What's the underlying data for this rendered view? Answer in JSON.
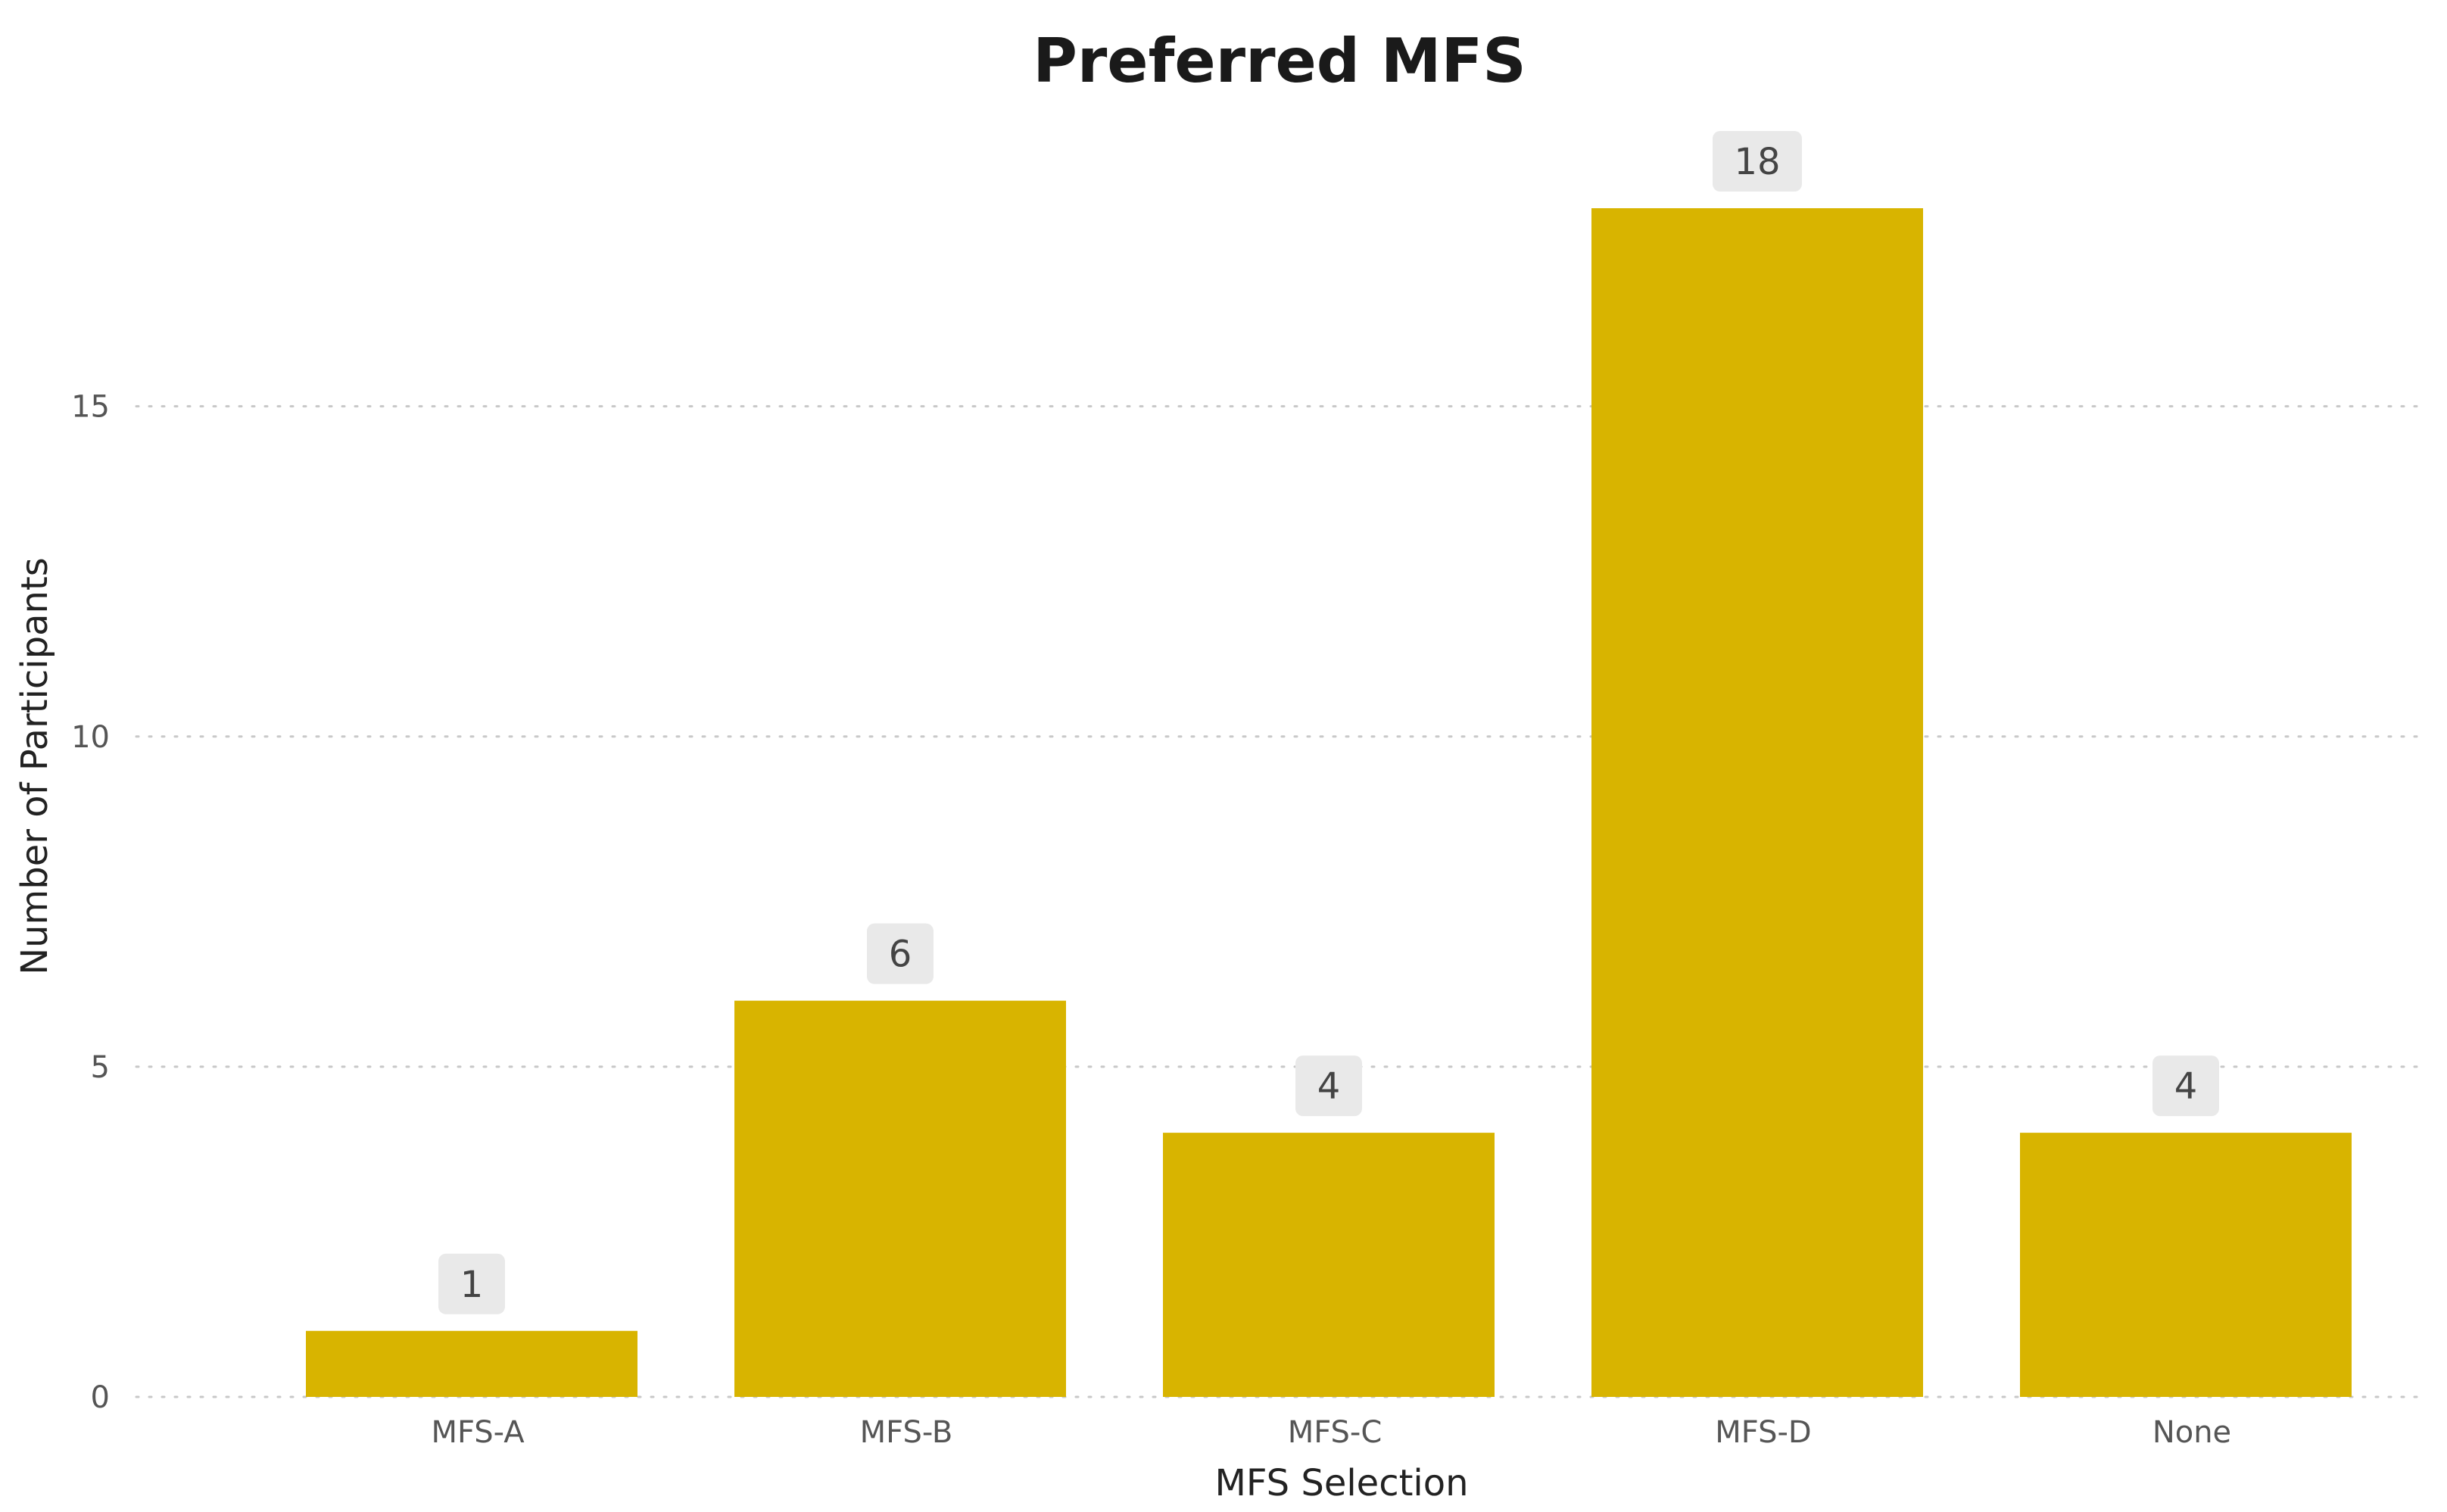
{
  "chart_data": {
    "type": "bar",
    "title": "Preferred MFS",
    "xlabel": "MFS Selection",
    "ylabel": "Number of Participants",
    "categories": [
      "MFS-A",
      "MFS-B",
      "MFS-C",
      "MFS-D",
      "None"
    ],
    "values": [
      1,
      6,
      4,
      18,
      4
    ],
    "data_labels": [
      "1",
      "6",
      "4",
      "18",
      "4"
    ],
    "ylim": [
      0,
      18
    ],
    "yticks": [
      0,
      5,
      10,
      15
    ],
    "ytick_labels": [
      "0",
      "5",
      "10",
      "15"
    ],
    "grid": true,
    "legend": "none",
    "colors": {
      "bar": "#D8B400",
      "data_label_bg": "#E9E9E9"
    }
  }
}
